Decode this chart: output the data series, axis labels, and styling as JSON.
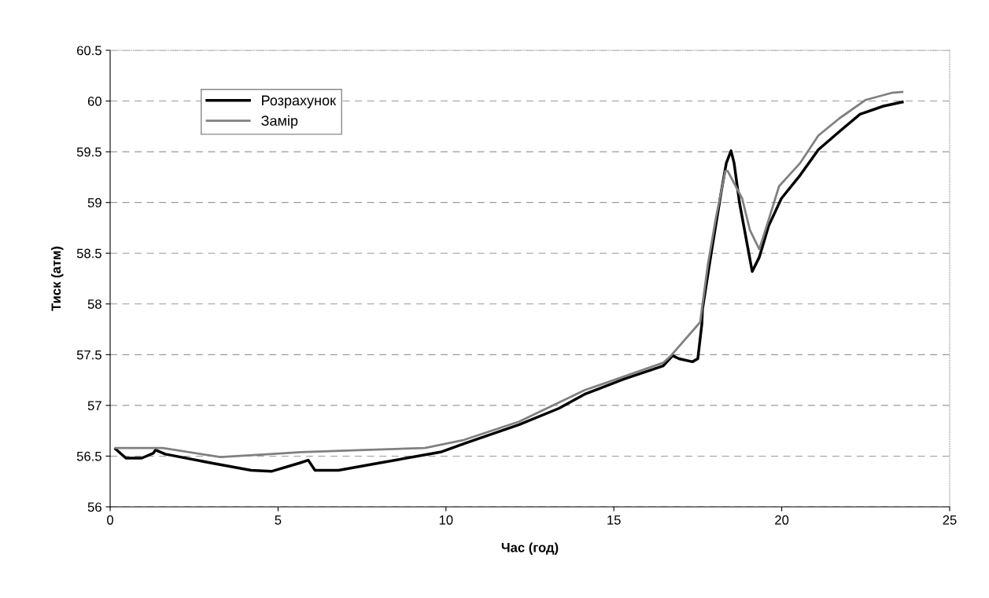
{
  "chart_data": {
    "type": "line",
    "xlabel": "Час (год)",
    "ylabel": "Тиск (атм)",
    "xlim": [
      0,
      25
    ],
    "xticks": [
      0,
      5,
      10,
      15,
      20,
      25
    ],
    "ylim": [
      56,
      60.5
    ],
    "yticks": [
      56,
      56.5,
      57,
      57.5,
      58,
      58.5,
      59,
      59.5,
      60,
      60.5
    ],
    "grid": "y",
    "legend": "top left",
    "marker": "none",
    "line_style": "solid",
    "series": [
      {
        "name": "Розрахунок",
        "color": "#000000",
        "x": [
          0.16,
          0.47,
          0.94,
          1.29,
          1.35,
          1.64,
          3.05,
          4.2,
          4.8,
          5.62,
          5.9,
          6.1,
          6.8,
          7.97,
          9.84,
          10.6,
          12.18,
          13.36,
          14.13,
          15.3,
          16.47,
          16.75,
          16.94,
          17.34,
          17.5,
          17.62,
          17.64,
          17.88,
          18.2,
          18.35,
          18.49,
          18.58,
          18.74,
          18.98,
          19.12,
          19.33,
          19.61,
          19.99,
          20.55,
          21.09,
          21.72,
          22.33,
          23.03,
          23.59
        ],
        "values": [
          56.57,
          56.48,
          56.48,
          56.53,
          56.56,
          56.52,
          56.43,
          56.36,
          56.35,
          56.43,
          56.46,
          56.36,
          56.36,
          56.43,
          56.54,
          56.63,
          56.81,
          56.97,
          57.11,
          57.26,
          57.39,
          57.49,
          57.46,
          57.43,
          57.46,
          57.8,
          57.95,
          58.46,
          59.11,
          59.39,
          59.51,
          59.39,
          59.0,
          58.57,
          58.32,
          58.46,
          58.77,
          59.04,
          59.27,
          59.52,
          59.7,
          59.87,
          59.95,
          59.99
        ]
      },
      {
        "name": "Замір",
        "color": "#808080",
        "x": [
          0.16,
          1.57,
          3.28,
          4.76,
          5.69,
          7.57,
          9.37,
          10.54,
          12.18,
          14.13,
          16.47,
          16.7,
          17.57,
          17.8,
          18.04,
          18.32,
          18.39,
          18.82,
          19.05,
          19.33,
          19.61,
          19.92,
          20.55,
          21.09,
          21.72,
          22.49,
          23.27,
          23.59
        ],
        "values": [
          56.58,
          56.58,
          56.49,
          56.52,
          56.54,
          56.56,
          56.58,
          56.66,
          56.84,
          57.15,
          57.42,
          57.49,
          57.82,
          58.39,
          58.85,
          59.31,
          59.31,
          59.04,
          58.73,
          58.54,
          58.83,
          59.16,
          59.39,
          59.66,
          59.83,
          60.01,
          60.08,
          60.09
        ]
      }
    ]
  }
}
